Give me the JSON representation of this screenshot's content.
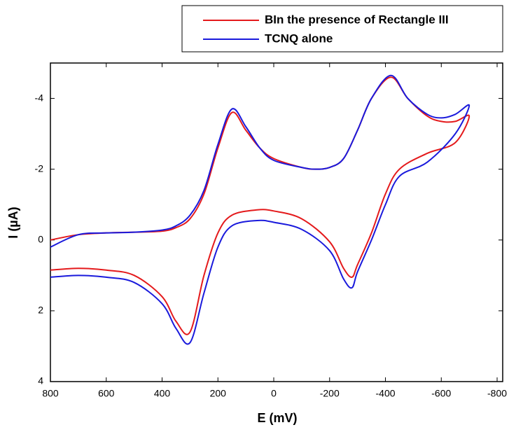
{
  "chart_data": {
    "type": "line",
    "x_label": "E (mV)",
    "y_label": "I (µA)",
    "x": [
      800,
      700,
      600,
      500,
      400,
      350,
      300,
      250,
      200,
      150,
      100,
      50,
      0,
      -100,
      -150,
      -200,
      -250,
      -300,
      -350,
      -420,
      -480,
      -550,
      -600,
      -650,
      -700,
      -650,
      -550,
      -450,
      -400,
      -350,
      -300,
      -280,
      -250,
      -200,
      -100,
      0,
      60,
      150,
      200,
      250,
      300,
      350,
      400,
      500,
      600,
      700,
      800
    ],
    "series": [
      {
        "name": "BIn the presence of Rectangle III",
        "color": "#e41a1c",
        "values": [
          0.0,
          -0.15,
          -0.2,
          -0.22,
          -0.25,
          -0.35,
          -0.6,
          -1.3,
          -2.6,
          -3.6,
          -3.1,
          -2.6,
          -2.3,
          -2.05,
          -2.0,
          -2.05,
          -2.3,
          -3.1,
          -4.0,
          -4.6,
          -4.0,
          -3.5,
          -3.35,
          -3.35,
          -3.5,
          -2.75,
          -2.45,
          -2.0,
          -1.3,
          -0.2,
          0.7,
          1.05,
          0.8,
          0.05,
          -0.6,
          -0.82,
          -0.85,
          -0.7,
          -0.2,
          1.0,
          2.6,
          2.3,
          1.6,
          1.0,
          0.85,
          0.8,
          0.85
        ]
      },
      {
        "name": "TCNQ alone",
        "color": "#1a1adc",
        "values": [
          0.2,
          -0.15,
          -0.2,
          -0.22,
          -0.28,
          -0.4,
          -0.7,
          -1.4,
          -2.7,
          -3.7,
          -3.2,
          -2.6,
          -2.25,
          -2.05,
          -2.0,
          -2.05,
          -2.3,
          -3.1,
          -4.0,
          -4.65,
          -4.0,
          -3.55,
          -3.45,
          -3.55,
          -3.8,
          -3.0,
          -2.2,
          -1.8,
          -1.0,
          0.0,
          0.9,
          1.35,
          1.1,
          0.3,
          -0.3,
          -0.5,
          -0.55,
          -0.4,
          0.2,
          1.5,
          2.9,
          2.5,
          1.8,
          1.2,
          1.05,
          1.0,
          1.05
        ]
      }
    ],
    "xlim": [
      800,
      -820
    ],
    "xticks": [
      800,
      600,
      400,
      200,
      0,
      -200,
      -400,
      -600,
      -800
    ],
    "ylim": [
      4,
      -5
    ],
    "yticks": [
      -4,
      -2,
      0,
      2,
      4
    ],
    "legend": "top-right"
  }
}
